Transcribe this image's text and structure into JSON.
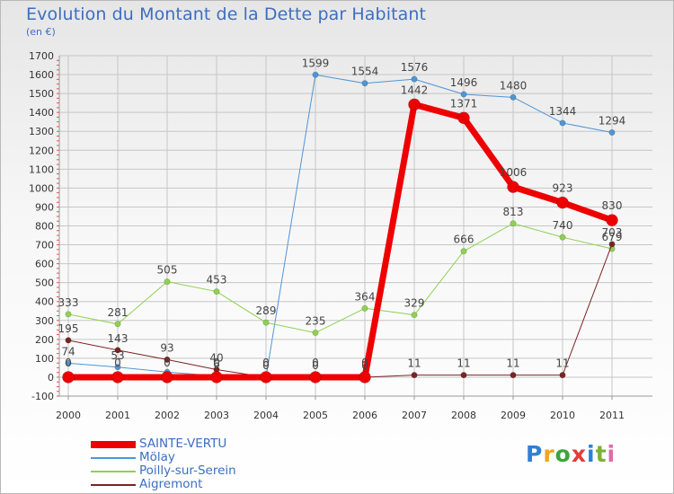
{
  "header": {
    "title": "Evolution du Montant de la Dette par Habitant",
    "subtitle": "(en €)"
  },
  "logo": {
    "text": "Proxiti",
    "colors": [
      "#2f7fd6",
      "#f2a51a",
      "#3aa63a",
      "#e23b3b",
      "#2f7fd6",
      "#7ab23a",
      "#e06aa8"
    ]
  },
  "chart_data": {
    "type": "line",
    "title": "Evolution du Montant de la Dette par Habitant",
    "subtitle": "(en €)",
    "xlabel": "",
    "ylabel": "",
    "x": [
      "2000",
      "2001",
      "2002",
      "2003",
      "2004",
      "2005",
      "2006",
      "2007",
      "2008",
      "2009",
      "2010",
      "2011"
    ],
    "ylim": [
      -100,
      1700
    ],
    "yticks": [
      -100,
      0,
      100,
      200,
      300,
      400,
      500,
      600,
      700,
      800,
      900,
      1000,
      1100,
      1200,
      1300,
      1400,
      1500,
      1600,
      1700
    ],
    "grid": true,
    "legend_position": "bottom-left",
    "series": [
      {
        "name": "Mölay",
        "color": "#4f95d6",
        "lineWidth": 1,
        "markerRadius": 3.2,
        "values": [
          74,
          53,
          27,
          6,
          0,
          1599,
          1554,
          1576,
          1496,
          1480,
          1344,
          1294
        ],
        "labels": [
          "74",
          "53",
          "",
          "6",
          "",
          "1599",
          "1554",
          "1576",
          "1496",
          "1480",
          "1344",
          "1294"
        ]
      },
      {
        "name": "Poilly-sur-Serein",
        "color": "#8fd154",
        "lineWidth": 1,
        "markerRadius": 3.2,
        "values": [
          333,
          281,
          505,
          453,
          289,
          235,
          364,
          329,
          666,
          813,
          740,
          679
        ],
        "labels": [
          "333",
          "281",
          "505",
          "453",
          "289",
          "235",
          "364",
          "329",
          "666",
          "813",
          "740",
          "679"
        ]
      },
      {
        "name": "Aigremont",
        "color": "#7a2424",
        "lineWidth": 1,
        "markerRadius": 3.2,
        "values": [
          195,
          143,
          93,
          40,
          0,
          0,
          0,
          11,
          11,
          11,
          11,
          703
        ],
        "labels": [
          "195",
          "143",
          "93",
          "40",
          "0",
          "0",
          "0",
          "11",
          "11",
          "11",
          "11",
          "703"
        ]
      },
      {
        "name": "SAINTE-VERTU",
        "color": "#ee0000",
        "lineWidth": 7,
        "markerRadius": 6.5,
        "values": [
          0,
          0,
          0,
          0,
          0,
          0,
          0,
          1442,
          1371,
          1006,
          923,
          830
        ],
        "labels": [
          "0",
          "0",
          "0",
          "0",
          "0",
          "0",
          "0",
          "1442",
          "1371",
          "1006",
          "923",
          "830"
        ]
      }
    ],
    "legend": [
      "SAINTE-VERTU",
      "Mölay",
      "Poilly-sur-Serein",
      "Aigremont"
    ]
  }
}
